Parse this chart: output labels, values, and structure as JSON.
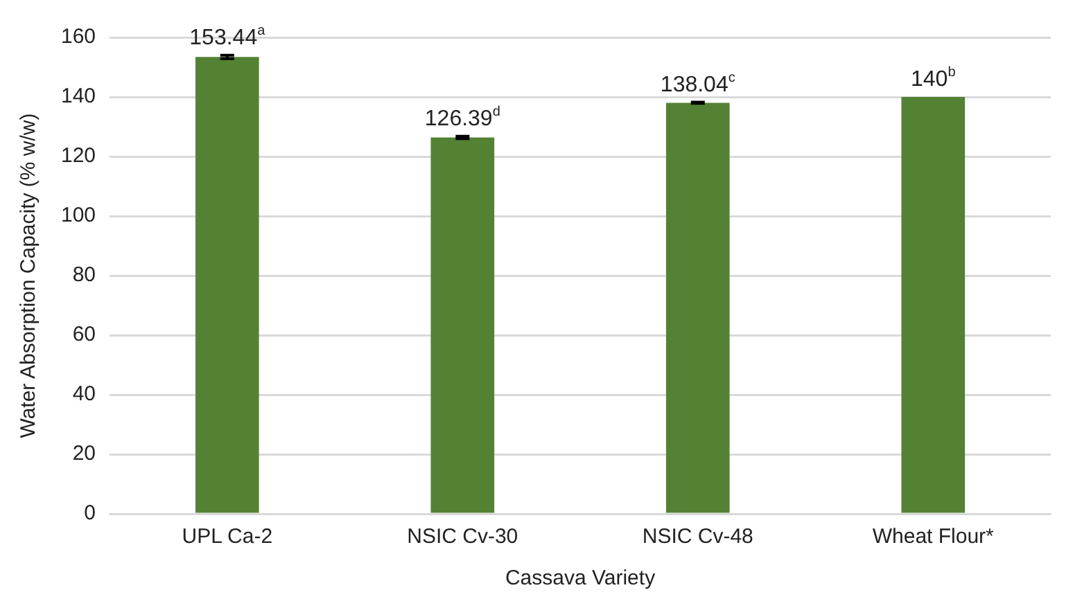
{
  "chart_data": {
    "type": "bar",
    "xlabel": "Cassava Variety",
    "ylabel": "Water Absorption Capacity (% w/w)",
    "categories": [
      "UPL Ca-2",
      "NSIC Cv-30",
      "NSIC Cv-48",
      "Wheat Flour*"
    ],
    "values": [
      153.44,
      126.39,
      138.04,
      140
    ],
    "errors": [
      0.6,
      0.4,
      0.2,
      null
    ],
    "value_labels": [
      "153.44$^{a}$",
      "126.39$^{d}$",
      "138.04$^{c}$",
      "140$^{b}$"
    ],
    "color": "#548235",
    "ylim": [
      0,
      160
    ],
    "yticks": [
      0,
      20,
      40,
      60,
      80,
      100,
      120,
      140,
      160
    ],
    "grid": "y",
    "legend": false
  }
}
